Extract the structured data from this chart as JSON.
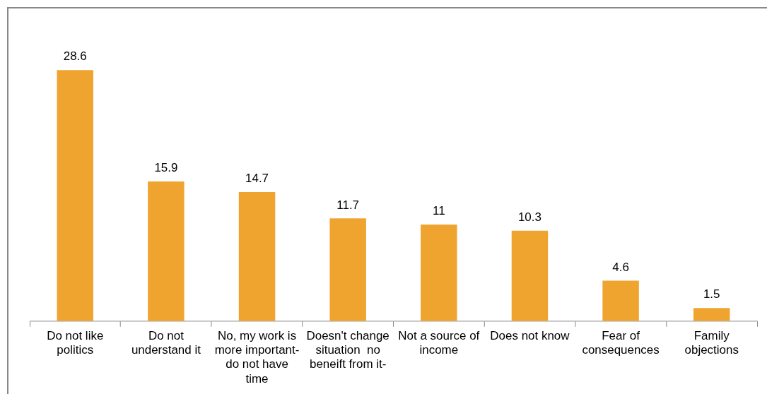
{
  "chart_data": {
    "type": "bar",
    "categories": [
      "Do not like politics",
      "Do not understand it",
      "No, my work is more important- do not have time",
      "Doesn't change situation  no beneift from it-",
      "Not a source of income",
      "Does not know",
      "Fear of consequences",
      "Family objections"
    ],
    "values": [
      28.6,
      15.9,
      14.7,
      11.7,
      11,
      10.3,
      4.6,
      1.5
    ],
    "color": "#f0a430",
    "data_labels": true,
    "tick_labels": "x",
    "grid": false,
    "legend": false
  }
}
